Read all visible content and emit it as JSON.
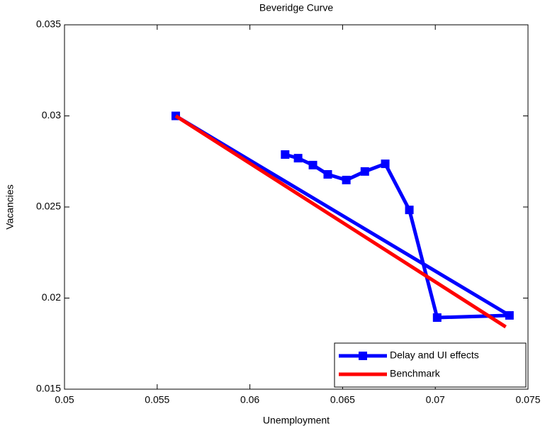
{
  "chart_data": {
    "type": "line",
    "title": "Beveridge Curve",
    "x_label": "Unemployment",
    "y_label": "Vacancies",
    "xlim": [
      0.05,
      0.075
    ],
    "xticks": [
      0.05,
      0.055,
      0.06,
      0.065,
      0.07,
      0.075
    ],
    "ylim": [
      0.015,
      0.035
    ],
    "yticks": [
      0.015,
      0.02,
      0.025,
      0.03,
      0.035
    ],
    "legend": "lower right",
    "series": [
      {
        "name": "Delay and UI effects",
        "color": "#0000ff",
        "marker": "square",
        "x": [
          0.056,
          0.074,
          0.0701,
          0.0686,
          0.0673,
          0.0662,
          0.0652,
          0.0642,
          0.0634,
          0.0626,
          0.0619
        ],
        "values": [
          0.03,
          0.01905,
          0.01893,
          0.02484,
          0.02737,
          0.02695,
          0.02648,
          0.02679,
          0.0273,
          0.02768,
          0.02788
        ]
      },
      {
        "name": "Benchmark",
        "color": "#ff0000",
        "x": [
          0.056,
          0.0738
        ],
        "values": [
          0.03,
          0.01842
        ]
      }
    ]
  }
}
